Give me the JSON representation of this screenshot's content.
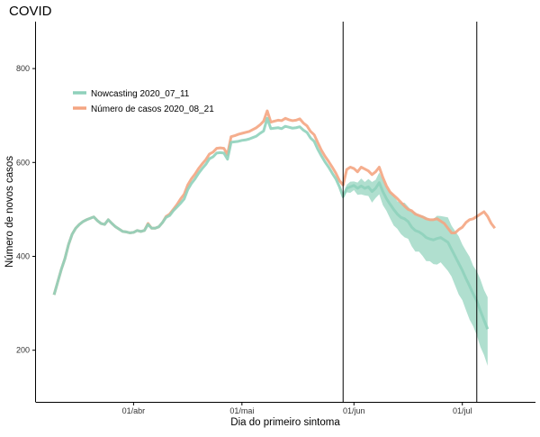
{
  "chart_data": {
    "type": "line",
    "title": "COVID",
    "xlabel": "Dia do primeiro sintoma",
    "ylabel": "Número de novos casos",
    "x_start_date": "2020-03-10",
    "x_end_date": "2020-07-15",
    "xlim": [
      "2020-03-05",
      "2020-07-21"
    ],
    "ylim": [
      90,
      900
    ],
    "y_ticks": [
      200,
      400,
      600,
      800
    ],
    "x_ticks": [
      {
        "date": "2020-04-01",
        "label": "01/abr"
      },
      {
        "date": "2020-05-01",
        "label": "01/mai"
      },
      {
        "date": "2020-06-01",
        "label": "01/jun"
      },
      {
        "date": "2020-07-01",
        "label": "01/jul"
      }
    ],
    "vertical_lines": [
      "2020-05-29",
      "2020-07-05"
    ],
    "legend_position": "top-left",
    "series": [
      {
        "name": "Nowcasting 2020_07_11",
        "color": "#8fd1bb",
        "values": [
          318,
          345,
          372,
          395,
          425,
          447,
          460,
          468,
          474,
          478,
          481,
          484,
          476,
          470,
          468,
          478,
          470,
          463,
          458,
          453,
          452,
          450,
          451,
          455,
          453,
          455,
          468,
          460,
          460,
          463,
          472,
          483,
          487,
          497,
          505,
          513,
          522,
          542,
          555,
          565,
          577,
          587,
          596,
          608,
          612,
          620,
          621,
          620,
          607,
          643,
          644,
          645,
          647,
          648,
          650,
          653,
          656,
          662,
          667,
          694,
          672,
          673,
          674,
          672,
          677,
          675,
          673,
          674,
          676,
          669,
          664,
          652,
          645,
          628,
          614,
          601,
          590,
          577,
          565,
          548,
          527,
          545,
          548,
          551,
          545,
          550,
          545,
          548,
          538,
          545,
          557,
          538,
          523,
          511,
          500,
          490,
          483,
          480,
          474,
          462,
          455,
          452,
          447,
          440,
          437,
          435,
          438,
          440,
          435,
          430,
          415,
          400,
          385,
          370,
          353,
          337,
          320,
          305,
          284,
          264,
          245
        ]
      },
      {
        "name": "Número de casos 2020_08_21",
        "color": "#f4a582",
        "values": [
          318,
          345,
          372,
          395,
          425,
          447,
          460,
          468,
          474,
          478,
          481,
          484,
          476,
          470,
          468,
          478,
          470,
          463,
          458,
          453,
          452,
          450,
          451,
          455,
          453,
          455,
          470,
          460,
          460,
          463,
          472,
          485,
          490,
          500,
          510,
          522,
          532,
          552,
          565,
          575,
          587,
          597,
          606,
          618,
          622,
          630,
          631,
          630,
          617,
          655,
          657,
          660,
          662,
          664,
          666,
          670,
          674,
          680,
          688,
          710,
          686,
          688,
          690,
          689,
          694,
          691,
          689,
          690,
          693,
          684,
          678,
          666,
          659,
          642,
          626,
          613,
          602,
          590,
          577,
          561,
          552,
          585,
          590,
          587,
          580,
          590,
          586,
          582,
          574,
          580,
          590,
          568,
          550,
          537,
          530,
          523,
          515,
          507,
          500,
          497,
          490,
          487,
          484,
          480,
          478,
          478,
          480,
          475,
          470,
          460,
          450,
          450,
          457,
          462,
          472,
          478,
          480,
          485,
          490,
          495,
          485,
          470,
          460
        ]
      }
    ]
  }
}
